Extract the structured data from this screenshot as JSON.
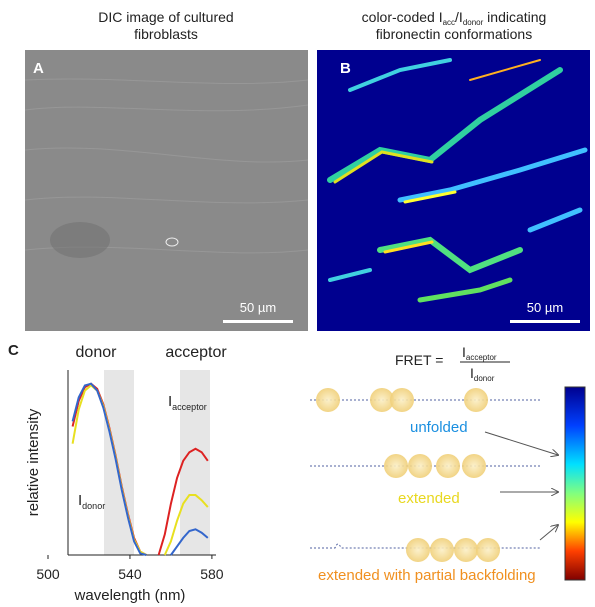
{
  "panel_a": {
    "letter": "A",
    "title_lines": [
      "DIC image of cultured",
      "fibroblasts"
    ],
    "scale_bar": "50 µm"
  },
  "panel_b": {
    "letter": "B",
    "title_line1": {
      "pre": "color-coded I",
      "sub1": "acc",
      "mid": "/I",
      "sub2": "donor",
      "post": " indicating"
    },
    "title_line2": "fibronectin conformations",
    "scale_bar": "50 µm"
  },
  "panel_c": {
    "letter": "C"
  },
  "chart_data": {
    "type": "line",
    "xlabel": "wavelength (nm)",
    "ylabel": "relative intensity",
    "annotations": {
      "donor_band": "donor",
      "acceptor_band": "acceptor",
      "i_acceptor": {
        "symbol": "I",
        "sub": "acceptor"
      },
      "i_donor": {
        "symbol": "I",
        "sub": "donor"
      }
    },
    "x": [
      512,
      515,
      518,
      521,
      524,
      527,
      530,
      533,
      536,
      539,
      542,
      545,
      548,
      551,
      554,
      557,
      560,
      563,
      566,
      569,
      572,
      575,
      578
    ],
    "series": [
      {
        "color": "#dd2222",
        "values": [
          0.75,
          0.9,
          0.98,
          1.0,
          0.97,
          0.88,
          0.74,
          0.58,
          0.4,
          0.24,
          0.1,
          0.02,
          0,
          null,
          0,
          0.12,
          0.3,
          0.45,
          0.55,
          0.6,
          0.62,
          0.6,
          0.55
        ]
      },
      {
        "color": "#e8e020",
        "values": [
          0.65,
          0.85,
          0.96,
          0.99,
          0.96,
          0.87,
          0.73,
          0.57,
          0.39,
          0.23,
          0.09,
          0.02,
          0,
          null,
          null,
          0,
          0.08,
          0.2,
          0.3,
          0.35,
          0.35,
          0.32,
          0.28
        ]
      },
      {
        "color": "#3366cc",
        "values": [
          0.78,
          0.92,
          0.99,
          1.0,
          0.96,
          0.86,
          0.72,
          0.56,
          0.38,
          0.22,
          0.08,
          0.01,
          0,
          null,
          null,
          null,
          0,
          0.05,
          0.1,
          0.14,
          0.15,
          0.13,
          0.1
        ]
      }
    ],
    "xlim": [
      500,
      582
    ],
    "ylim": [
      0,
      1.08
    ],
    "xticks": [
      500,
      540,
      580
    ]
  },
  "diagram": {
    "formula": {
      "lhs": "FRET =",
      "num": {
        "symbol": "I",
        "sub": "acceptor"
      },
      "den": {
        "symbol": "I",
        "sub": "donor"
      }
    },
    "states": [
      "unfolded",
      "extended",
      "extended with partial backfolding"
    ]
  }
}
